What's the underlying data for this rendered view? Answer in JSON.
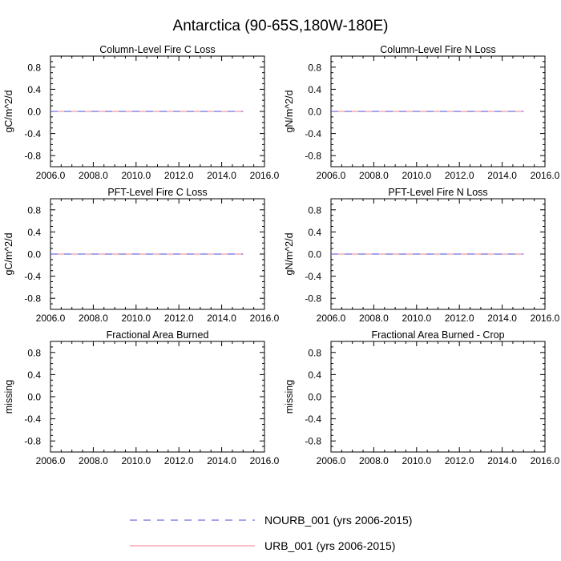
{
  "figure_title": "Antarctica (90-65S,180W-180E)",
  "colors": {
    "nourb": "#4a4ad8",
    "urb": "#f07e8a",
    "axis": "#000000"
  },
  "chart_data": [
    {
      "type": "line",
      "title": "Column-Level Fire C Loss",
      "xlabel": "",
      "ylabel": "gC/m^2/d",
      "xlim": [
        2006.0,
        2016.0
      ],
      "ylim": [
        -1.0,
        1.0
      ],
      "xticks": [
        "2006.0",
        "2008.0",
        "2010.0",
        "2012.0",
        "2014.0",
        "2016.0"
      ],
      "yticks": [
        "0.8",
        "0.4",
        "0.0",
        "-0.4",
        "-0.8"
      ],
      "series": [
        {
          "name": "NOURB_001 (yrs 2006-2015)",
          "x": [
            2006,
            2015
          ],
          "y": [
            0.0,
            0.0
          ]
        },
        {
          "name": "URB_001 (yrs 2006-2015)",
          "x": [
            2006,
            2015
          ],
          "y": [
            0.0,
            0.0
          ]
        }
      ]
    },
    {
      "type": "line",
      "title": "Column-Level Fire N Loss",
      "xlabel": "",
      "ylabel": "gN/m^2/d",
      "xlim": [
        2006.0,
        2016.0
      ],
      "ylim": [
        -1.0,
        1.0
      ],
      "xticks": [
        "2006.0",
        "2008.0",
        "2010.0",
        "2012.0",
        "2014.0",
        "2016.0"
      ],
      "yticks": [
        "0.8",
        "0.4",
        "0.0",
        "-0.4",
        "-0.8"
      ],
      "series": [
        {
          "name": "NOURB_001 (yrs 2006-2015)",
          "x": [
            2006,
            2015
          ],
          "y": [
            0.0,
            0.0
          ]
        },
        {
          "name": "URB_001 (yrs 2006-2015)",
          "x": [
            2006,
            2015
          ],
          "y": [
            0.0,
            0.0
          ]
        }
      ]
    },
    {
      "type": "line",
      "title": "PFT-Level Fire C Loss",
      "xlabel": "",
      "ylabel": "gC/m^2/d",
      "xlim": [
        2006.0,
        2016.0
      ],
      "ylim": [
        -1.0,
        1.0
      ],
      "xticks": [
        "2006.0",
        "2008.0",
        "2010.0",
        "2012.0",
        "2014.0",
        "2016.0"
      ],
      "yticks": [
        "0.8",
        "0.4",
        "0.0",
        "-0.4",
        "-0.8"
      ],
      "series": [
        {
          "name": "NOURB_001 (yrs 2006-2015)",
          "x": [
            2006,
            2015
          ],
          "y": [
            0.0,
            0.0
          ]
        },
        {
          "name": "URB_001 (yrs 2006-2015)",
          "x": [
            2006,
            2015
          ],
          "y": [
            0.0,
            0.0
          ]
        }
      ]
    },
    {
      "type": "line",
      "title": "PFT-Level Fire N Loss",
      "xlabel": "",
      "ylabel": "gN/m^2/d",
      "xlim": [
        2006.0,
        2016.0
      ],
      "ylim": [
        -1.0,
        1.0
      ],
      "xticks": [
        "2006.0",
        "2008.0",
        "2010.0",
        "2012.0",
        "2014.0",
        "2016.0"
      ],
      "yticks": [
        "0.8",
        "0.4",
        "0.0",
        "-0.4",
        "-0.8"
      ],
      "series": [
        {
          "name": "NOURB_001 (yrs 2006-2015)",
          "x": [
            2006,
            2015
          ],
          "y": [
            0.0,
            0.0
          ]
        },
        {
          "name": "URB_001 (yrs 2006-2015)",
          "x": [
            2006,
            2015
          ],
          "y": [
            0.0,
            0.0
          ]
        }
      ]
    },
    {
      "type": "line",
      "title": "Fractional Area Burned",
      "xlabel": "",
      "ylabel": "missing",
      "xlim": [
        2006.0,
        2016.0
      ],
      "ylim": [
        -1.0,
        1.0
      ],
      "xticks": [
        "2006.0",
        "2008.0",
        "2010.0",
        "2012.0",
        "2014.0",
        "2016.0"
      ],
      "yticks": [
        "0.8",
        "0.4",
        "0.0",
        "-0.4",
        "-0.8"
      ],
      "series": []
    },
    {
      "type": "line",
      "title": "Fractional Area Burned - Crop",
      "xlabel": "",
      "ylabel": "missing",
      "xlim": [
        2006.0,
        2016.0
      ],
      "ylim": [
        -1.0,
        1.0
      ],
      "xticks": [
        "2006.0",
        "2008.0",
        "2010.0",
        "2012.0",
        "2014.0",
        "2016.0"
      ],
      "yticks": [
        "0.8",
        "0.4",
        "0.0",
        "-0.4",
        "-0.8"
      ],
      "series": []
    }
  ],
  "legend": [
    {
      "label": "NOURB_001 (yrs 2006-2015)",
      "style": "dashed",
      "color": "#4a4ad8"
    },
    {
      "label": "URB_001 (yrs 2006-2015)",
      "style": "solid",
      "color": "#f07e8a"
    }
  ]
}
